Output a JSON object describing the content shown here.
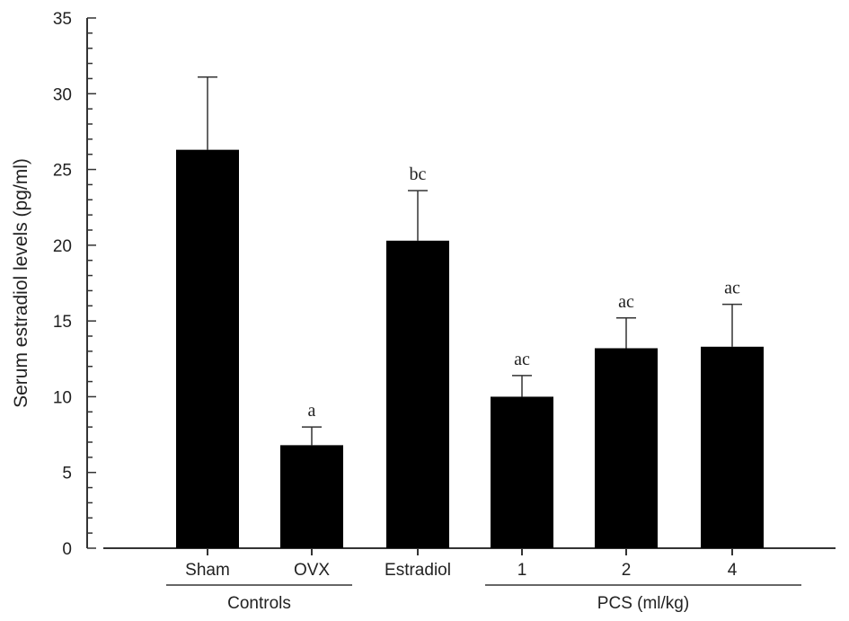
{
  "chart_data": {
    "type": "bar",
    "title": "",
    "xlabel": "",
    "ylabel": "Serum estradiol levels (pg/ml)",
    "ylim": [
      0,
      35
    ],
    "yticks": [
      0,
      5,
      10,
      15,
      20,
      25,
      30,
      35
    ],
    "categories": [
      "Sham",
      "OVX",
      "Estradiol",
      "1",
      "2",
      "4"
    ],
    "values": [
      26.3,
      6.8,
      20.3,
      10.0,
      13.2,
      13.3
    ],
    "errors": [
      4.8,
      1.2,
      3.3,
      1.4,
      2.0,
      2.8
    ],
    "annotations": [
      "",
      "a",
      "bc",
      "ac",
      "ac",
      "ac"
    ],
    "groups": [
      {
        "label": "Controls",
        "members": [
          0,
          1
        ]
      },
      {
        "label": "PCS (ml/kg)",
        "members": [
          3,
          4,
          5
        ]
      }
    ],
    "bar_color": "#000000",
    "grid": false
  }
}
